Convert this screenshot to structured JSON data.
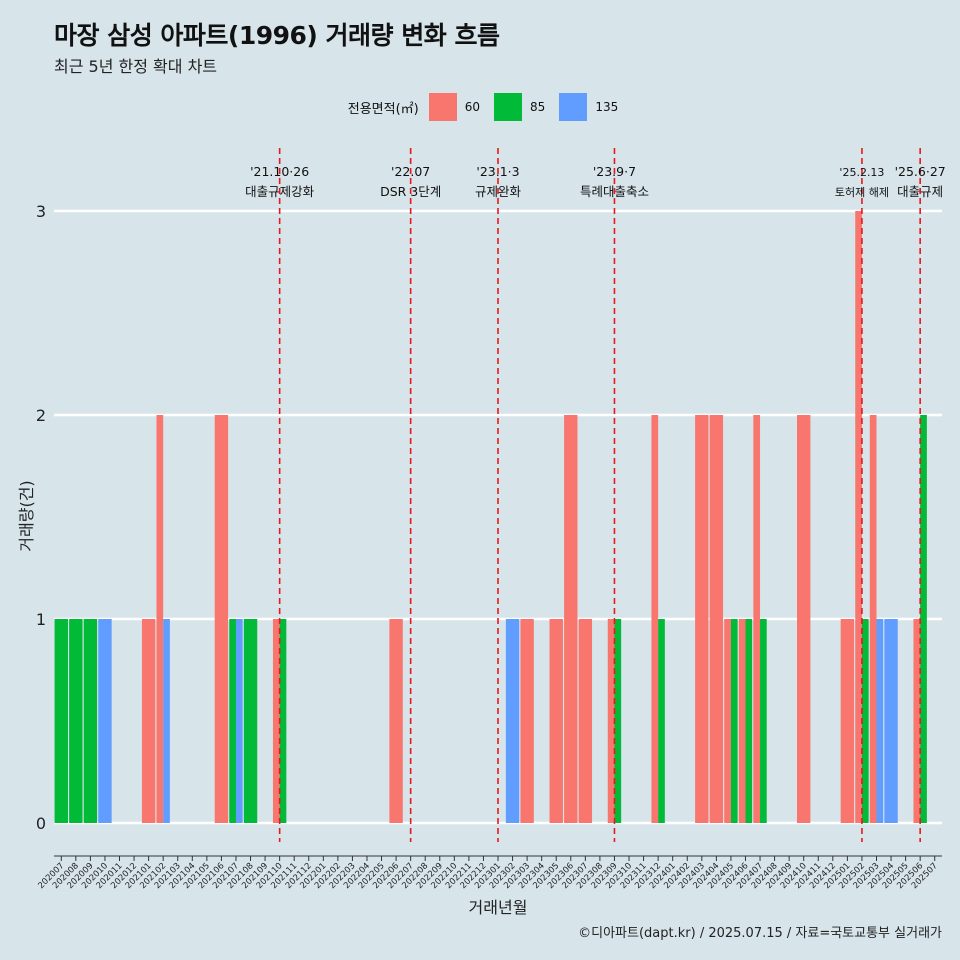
{
  "header": {
    "title": "마장 삼성 아파트(1996) 거래량 변화 흐름",
    "subtitle": "최근 5년 한정 확대 차트"
  },
  "caption": "©디아파트(dapt.kr) / 2025.07.15 / 자료=국토교통부 실거래가",
  "legend": {
    "title": "전용면적(㎡)",
    "items": [
      {
        "label": "60",
        "color": "#f8766d"
      },
      {
        "label": "85",
        "color": "#00ba38"
      },
      {
        "label": "135",
        "color": "#619cff"
      }
    ]
  },
  "chart_data": {
    "type": "bar",
    "xlabel": "거래년월",
    "ylabel": "거래량(건)",
    "ylim": [
      0,
      3
    ],
    "yticks": [
      0,
      1,
      2,
      3
    ],
    "grid": "horizontal",
    "legend_position": "top",
    "categories": [
      "202007",
      "202008",
      "202009",
      "202010",
      "202011",
      "202012",
      "202101",
      "202102",
      "202103",
      "202104",
      "202105",
      "202106",
      "202107",
      "202108",
      "202109",
      "202110",
      "202111",
      "202112",
      "202201",
      "202202",
      "202203",
      "202204",
      "202205",
      "202206",
      "202207",
      "202208",
      "202209",
      "202210",
      "202211",
      "202212",
      "202301",
      "202302",
      "202303",
      "202304",
      "202305",
      "202306",
      "202307",
      "202308",
      "202309",
      "202310",
      "202311",
      "202312",
      "202401",
      "202402",
      "202403",
      "202404",
      "202405",
      "202406",
      "202407",
      "202408",
      "202409",
      "202410",
      "202411",
      "202412",
      "202501",
      "202502",
      "202503",
      "202504",
      "202505",
      "202506",
      "202507"
    ],
    "series": [
      {
        "name": "60",
        "color": "#f8766d",
        "values": [
          0,
          0,
          0,
          0,
          0,
          0,
          1,
          2,
          0,
          0,
          0,
          2,
          0,
          0,
          0,
          1,
          0,
          0,
          0,
          0,
          0,
          0,
          0,
          1,
          0,
          0,
          0,
          0,
          0,
          0,
          0,
          0,
          1,
          0,
          1,
          2,
          1,
          0,
          1,
          0,
          0,
          2,
          0,
          0,
          2,
          2,
          1,
          1,
          2,
          0,
          0,
          2,
          0,
          0,
          1,
          3,
          2,
          0,
          0,
          1,
          0
        ]
      },
      {
        "name": "85",
        "color": "#00ba38",
        "values": [
          1,
          1,
          1,
          0,
          0,
          0,
          0,
          0,
          0,
          0,
          0,
          0,
          1,
          1,
          0,
          1,
          0,
          0,
          0,
          0,
          0,
          0,
          0,
          0,
          0,
          0,
          0,
          0,
          0,
          0,
          0,
          0,
          0,
          0,
          0,
          0,
          0,
          0,
          1,
          0,
          0,
          1,
          0,
          0,
          0,
          0,
          1,
          1,
          1,
          0,
          0,
          0,
          0,
          0,
          0,
          1,
          0,
          0,
          0,
          2,
          0
        ]
      },
      {
        "name": "135",
        "color": "#619cff",
        "values": [
          0,
          0,
          0,
          1,
          0,
          0,
          0,
          1,
          0,
          0,
          0,
          0,
          1,
          0,
          0,
          0,
          0,
          0,
          0,
          0,
          0,
          0,
          0,
          0,
          0,
          0,
          0,
          0,
          0,
          0,
          0,
          1,
          0,
          0,
          0,
          0,
          0,
          0,
          0,
          0,
          0,
          0,
          0,
          0,
          0,
          0,
          0,
          0,
          0,
          0,
          0,
          0,
          0,
          0,
          0,
          0,
          1,
          1,
          0,
          0,
          0
        ]
      }
    ],
    "annotations": [
      {
        "x": "202110",
        "date": "'21.10·26",
        "label": "대출규제강화"
      },
      {
        "x": "202207",
        "date": "'22.07",
        "label": "DSR 3단계"
      },
      {
        "x": "202301",
        "date": "'23.1·3",
        "label": "규제완화"
      },
      {
        "x": "202309",
        "date": "'23.9·7",
        "label": "특례대출축소"
      },
      {
        "x": "202502",
        "date": "'25.2.13",
        "label": "토허제 해제"
      },
      {
        "x": "202506",
        "date": "'25.6·27",
        "label": "대출규제"
      }
    ]
  }
}
